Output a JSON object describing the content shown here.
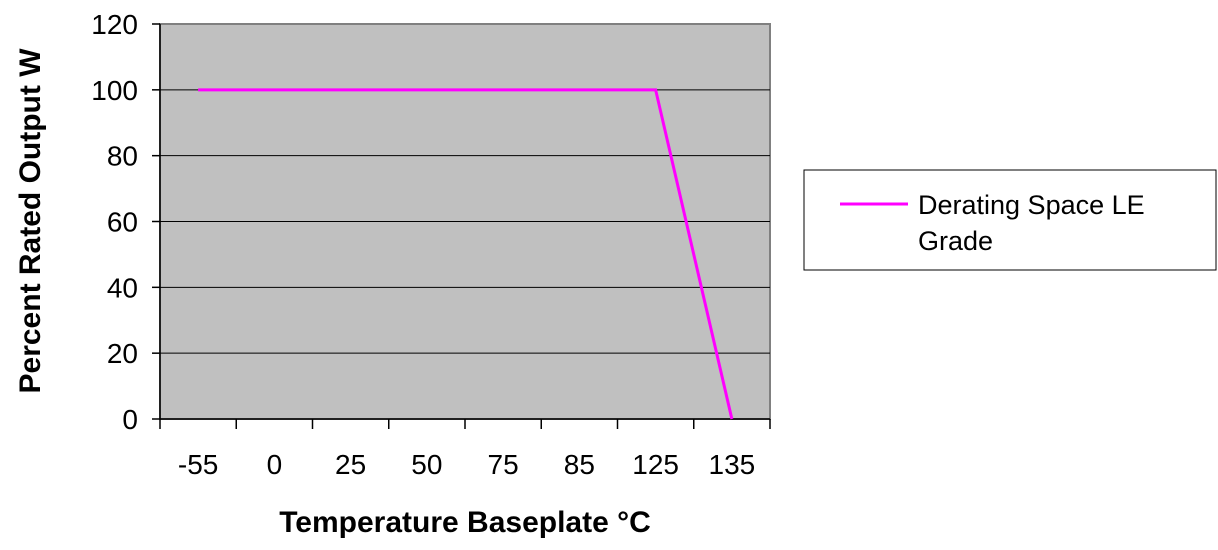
{
  "chart_data": {
    "type": "line",
    "xlabel": "Temperature Baseplate °C",
    "ylabel": "Percent Rated Output W",
    "categories": [
      "-55",
      "0",
      "25",
      "50",
      "75",
      "85",
      "125",
      "135"
    ],
    "ylim": [
      0,
      120
    ],
    "yticks": [
      0,
      20,
      40,
      60,
      80,
      100,
      120
    ],
    "grid": true,
    "legend_position": "right",
    "series": [
      {
        "name": "Derating Space LE Grade",
        "color": "#ff00ff",
        "values": [
          100,
          100,
          100,
          100,
          100,
          100,
          100,
          0
        ]
      }
    ]
  }
}
